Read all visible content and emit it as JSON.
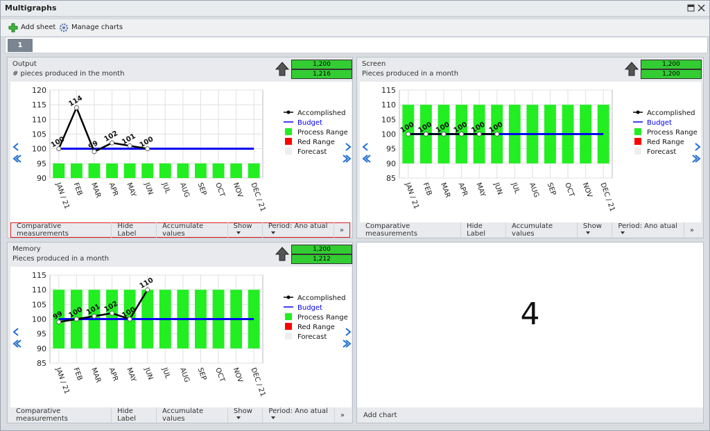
{
  "window": {
    "title": "Multigraphs"
  },
  "toolbar": [
    "Add sheet",
    "Manage charts"
  ],
  "tabs": [
    "1"
  ],
  "chart_footer": [
    "Comparative measurements",
    "Hide Label",
    "Accumulate values",
    "Show",
    "Period: Ano atual",
    "»"
  ],
  "chart_data": [
    {
      "type": "line",
      "title": "Output",
      "subtitle": "# pieces produced in the month",
      "badges": [
        "1,200",
        "1,216"
      ],
      "categories": [
        "JAN / 21",
        "FEB",
        "MAR",
        "APR",
        "MAY",
        "JUN",
        "JUL",
        "AUG",
        "SEP",
        "OCT",
        "NOV",
        "DEC / 21"
      ],
      "ylim": [
        90,
        120
      ],
      "yticks": [
        90,
        95,
        100,
        105,
        110,
        115,
        120
      ],
      "grid": true,
      "legend": "right",
      "series": [
        {
          "name": "Accomplished",
          "color": "#000000",
          "values": [
            100,
            114,
            99,
            102,
            101,
            100,
            null,
            null,
            null,
            null,
            null,
            null
          ]
        },
        {
          "name": "Budget",
          "color": "#0000ee",
          "values": [
            100,
            100,
            100,
            100,
            100,
            100,
            100,
            100,
            100,
            100,
            100,
            100
          ]
        },
        {
          "name": "Process Range",
          "color": "#22ee22",
          "low": [
            90,
            90,
            90,
            90,
            90,
            90,
            90,
            90,
            90,
            90,
            90,
            90
          ],
          "high": [
            95,
            95,
            95,
            95,
            95,
            95,
            95,
            95,
            95,
            95,
            95,
            95
          ]
        },
        {
          "name": "Red Range",
          "color": "#ff0000"
        },
        {
          "name": "Forecast",
          "color": "#eeeeee"
        }
      ]
    },
    {
      "type": "line",
      "title": "Screen",
      "subtitle": "Pieces produced in a month",
      "badges": [
        "1,200",
        "1,200"
      ],
      "categories": [
        "JAN / 21",
        "FEB",
        "MAR",
        "APR",
        "MAY",
        "JUN",
        "JUL",
        "AUG",
        "SEP",
        "OCT",
        "NOV",
        "DEC / 21"
      ],
      "ylim": [
        85,
        115
      ],
      "yticks": [
        85,
        90,
        95,
        100,
        105,
        110,
        115
      ],
      "grid": true,
      "legend": "right",
      "series": [
        {
          "name": "Accomplished",
          "color": "#000000",
          "values": [
            100,
            100,
            100,
            100,
            100,
            100,
            null,
            null,
            null,
            null,
            null,
            null
          ]
        },
        {
          "name": "Budget",
          "color": "#0000ee",
          "values": [
            100,
            100,
            100,
            100,
            100,
            100,
            100,
            100,
            100,
            100,
            100,
            100
          ]
        },
        {
          "name": "Process Range",
          "color": "#22ee22",
          "low": [
            90,
            90,
            90,
            90,
            90,
            90,
            90,
            90,
            90,
            90,
            90,
            90
          ],
          "high": [
            110,
            110,
            110,
            110,
            110,
            110,
            110,
            110,
            110,
            110,
            110,
            110
          ]
        },
        {
          "name": "Red Range",
          "color": "#ff0000"
        },
        {
          "name": "Forecast",
          "color": "#eeeeee"
        }
      ]
    },
    {
      "type": "line",
      "title": "Memory",
      "subtitle": "Pieces produced in a month",
      "badges": [
        "1,200",
        "1,212"
      ],
      "categories": [
        "JAN / 21",
        "FEB",
        "MAR",
        "APR",
        "MAY",
        "JUN",
        "JUL",
        "AUG",
        "SEP",
        "OCT",
        "NOV",
        "DEC / 21"
      ],
      "ylim": [
        85,
        115
      ],
      "yticks": [
        85,
        90,
        95,
        100,
        105,
        110,
        115
      ],
      "grid": true,
      "legend": "right",
      "series": [
        {
          "name": "Accomplished",
          "color": "#000000",
          "values": [
            99,
            100,
            101,
            102,
            100,
            110,
            null,
            null,
            null,
            null,
            null,
            null
          ]
        },
        {
          "name": "Budget",
          "color": "#0000ee",
          "values": [
            100,
            100,
            100,
            100,
            100,
            100,
            100,
            100,
            100,
            100,
            100,
            100
          ]
        },
        {
          "name": "Process Range",
          "color": "#22ee22",
          "low": [
            90,
            90,
            90,
            90,
            90,
            90,
            90,
            90,
            90,
            90,
            90,
            90
          ],
          "high": [
            110,
            110,
            110,
            110,
            110,
            110,
            110,
            110,
            110,
            110,
            110,
            110
          ]
        },
        {
          "name": "Red Range",
          "color": "#ff0000"
        },
        {
          "name": "Forecast",
          "color": "#eeeeee"
        }
      ]
    }
  ],
  "empty_panel": {
    "label": "4",
    "action": "Add chart"
  }
}
